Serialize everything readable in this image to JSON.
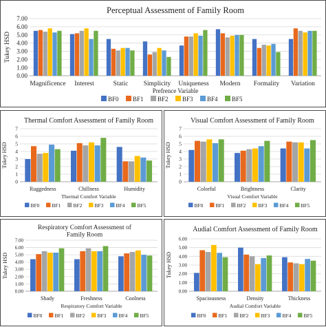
{
  "colors": {
    "BF0": "#4472C4",
    "BF1": "#E8691D",
    "BF2": "#A5A5A5",
    "BF3": "#FFC000",
    "BF4": "#5B9BD5",
    "BF5": "#70AD47"
  },
  "chart_data": [
    {
      "type": "bar",
      "title": "Perceptual Assessment of Family Room",
      "xlabel": "Prefrence Variable",
      "ylabel": "Tukey HSD",
      "ylim": [
        0,
        7
      ],
      "yticks": [
        "0.00",
        "1.00",
        "2.00",
        "3.00",
        "4.00",
        "5.00",
        "6.00",
        "7.00"
      ],
      "categories": [
        "Magnificence",
        "Interest",
        "Static",
        "Simplicity",
        "Uniqueness",
        "Modern",
        "Formality",
        "Variation"
      ],
      "series": [
        {
          "name": "BF0",
          "values": [
            5.5,
            5.1,
            4.5,
            4.2,
            3.7,
            5.7,
            4.5,
            4.5
          ]
        },
        {
          "name": "BF1",
          "values": [
            5.6,
            5.2,
            3.3,
            2.6,
            4.8,
            5.2,
            3.4,
            5.8
          ]
        },
        {
          "name": "BF2",
          "values": [
            5.4,
            5.5,
            3.1,
            2.9,
            4.8,
            4.7,
            3.8,
            5.5
          ]
        },
        {
          "name": "BF3",
          "values": [
            5.8,
            5.8,
            3.4,
            3.4,
            5.2,
            4.9,
            3.7,
            5.3
          ]
        },
        {
          "name": "BF4",
          "values": [
            5.3,
            4.5,
            3.4,
            3.1,
            4.9,
            5.0,
            3.9,
            5.5
          ]
        },
        {
          "name": "BF5",
          "values": [
            5.5,
            5.5,
            3.1,
            2.3,
            5.6,
            5.0,
            2.9,
            5.5
          ]
        }
      ]
    },
    {
      "type": "bar",
      "title": "Thermal Comfort Assessment of Family Room",
      "xlabel": "Thermal Comfort Variable",
      "ylabel": "Tukey HSD",
      "ylim": [
        0,
        7
      ],
      "yticks": [
        "0",
        "1",
        "2",
        "3",
        "4",
        "5",
        "6",
        "7"
      ],
      "categories": [
        "Ruggedness",
        "Chillness",
        "Humidity"
      ],
      "series": [
        {
          "name": "BF0",
          "values": [
            3.0,
            4.1,
            4.6
          ]
        },
        {
          "name": "BF1",
          "values": [
            4.7,
            5.1,
            2.7
          ]
        },
        {
          "name": "BF2",
          "values": [
            3.7,
            4.8,
            2.7
          ]
        },
        {
          "name": "BF3",
          "values": [
            3.8,
            5.2,
            3.4
          ]
        },
        {
          "name": "BF4",
          "values": [
            4.9,
            4.8,
            3.2
          ]
        },
        {
          "name": "BF5",
          "values": [
            4.3,
            5.8,
            2.8
          ]
        }
      ]
    },
    {
      "type": "bar",
      "title": "Visual Comfort Assessment of Family Room",
      "xlabel": "Visual Comfort Variable",
      "ylabel": "Tukey HSD",
      "ylim": [
        0,
        7
      ],
      "yticks": [
        "0",
        "1",
        "2",
        "3",
        "4",
        "5",
        "6",
        "7"
      ],
      "categories": [
        "Colorful",
        "Brightness",
        "Clarity"
      ],
      "series": [
        {
          "name": "BF0",
          "values": [
            4.2,
            3.8,
            4.4
          ]
        },
        {
          "name": "BF1",
          "values": [
            5.4,
            4.1,
            5.3
          ]
        },
        {
          "name": "BF2",
          "values": [
            5.3,
            4.3,
            5.2
          ]
        },
        {
          "name": "BF3",
          "values": [
            5.6,
            4.4,
            5.2
          ]
        },
        {
          "name": "BF4",
          "values": [
            5.1,
            4.7,
            4.4
          ]
        },
        {
          "name": "BF5",
          "values": [
            5.6,
            5.4,
            5.5
          ]
        }
      ]
    },
    {
      "type": "bar",
      "title": "Respiratory Comfort Assessment of Family Room",
      "xlabel": "Respiratory Comfort Variable",
      "ylabel": "Tukey HSD",
      "ylim": [
        0,
        7
      ],
      "yticks": [
        "0.00",
        "1.00",
        "2.00",
        "3.00",
        "4.00",
        "5.00",
        "6.00",
        "7.00"
      ],
      "categories": [
        "Shady",
        "Freshness",
        "Coolness"
      ],
      "series": [
        {
          "name": "BF0",
          "values": [
            4.4,
            4.4,
            4.8
          ]
        },
        {
          "name": "BF1",
          "values": [
            5.1,
            5.5,
            5.2
          ]
        },
        {
          "name": "BF2",
          "values": [
            5.5,
            5.9,
            5.4
          ]
        },
        {
          "name": "BF3",
          "values": [
            5.3,
            5.5,
            5.6
          ]
        },
        {
          "name": "BF4",
          "values": [
            5.3,
            5.5,
            5.0
          ]
        },
        {
          "name": "BF5",
          "values": [
            5.9,
            6.2,
            4.9
          ]
        }
      ]
    },
    {
      "type": "bar",
      "title": "Audial Comfort Assessment of Family Room",
      "xlabel": "Audial Comfort Variable",
      "ylabel": "Tukey HSD",
      "ylim": [
        0,
        6
      ],
      "yticks": [
        "0.00",
        "1.00",
        "2.00",
        "3.00",
        "4.00",
        "5.00",
        "6.00"
      ],
      "categories": [
        "Spaciousness",
        "Density",
        "Thickness"
      ],
      "series": [
        {
          "name": "BF0",
          "values": [
            2.1,
            5.0,
            3.9
          ]
        },
        {
          "name": "BF1",
          "values": [
            4.7,
            4.2,
            3.3
          ]
        },
        {
          "name": "BF2",
          "values": [
            4.5,
            4.0,
            3.2
          ]
        },
        {
          "name": "BF3",
          "values": [
            5.3,
            3.1,
            3.1
          ]
        },
        {
          "name": "BF4",
          "values": [
            4.4,
            3.8,
            3.7
          ]
        },
        {
          "name": "BF5",
          "values": [
            3.9,
            4.1,
            3.5
          ]
        }
      ]
    }
  ]
}
